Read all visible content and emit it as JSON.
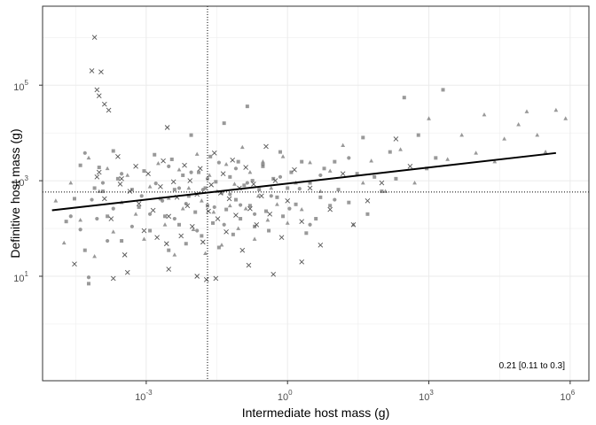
{
  "chart_data": {
    "type": "scatter",
    "title": "",
    "xlabel": "Intermediate host mass (g)",
    "ylabel": "Definitive host mass (g)",
    "x_scale": "log10",
    "y_scale": "log10",
    "xlim": [
      6.3e-06,
      2500000
    ],
    "ylim": [
      0.065,
      4500000
    ],
    "x_ticks": [
      {
        "value": 0.001,
        "base": "10",
        "exp": "-3"
      },
      {
        "value": 1,
        "base": "10",
        "exp": "0"
      },
      {
        "value": 1000,
        "base": "10",
        "exp": "3"
      },
      {
        "value": 1000000,
        "base": "10",
        "exp": "6"
      }
    ],
    "y_ticks": [
      {
        "value": 10,
        "base": "10",
        "exp": "1"
      },
      {
        "value": 1000,
        "base": "10",
        "exp": "3"
      },
      {
        "value": 100000,
        "base": "10",
        "exp": "5"
      }
    ],
    "grid": true,
    "colors": {
      "points": "#7f7f7f",
      "trend": "#000000",
      "grid": "#ebebeb",
      "panel_border": "#333333"
    },
    "reference_lines": {
      "vertical_x": 0.02,
      "horizontal_y": 580,
      "style": "dotted"
    },
    "trend_line": {
      "x": [
        1e-05,
        500000
      ],
      "y": [
        240,
        3800
      ]
    },
    "annotation": "0.21 [0.11 to 0.3]",
    "series": [
      {
        "marker": "square",
        "points": [
          [
            2e-05,
            140
          ],
          [
            3e-05,
            420
          ],
          [
            4e-05,
            2100
          ],
          [
            5e-05,
            35
          ],
          [
            6e-05,
            7
          ],
          [
            8e-05,
            700
          ],
          [
            0.0001,
            1900
          ],
          [
            0.00012,
            600
          ],
          [
            0.00015,
            180
          ],
          [
            0.0002,
            4200
          ],
          [
            0.00025,
            1100
          ],
          [
            0.0003,
            55
          ],
          [
            0.0005,
            650
          ],
          [
            0.0007,
            280
          ],
          [
            0.0009,
            1600
          ],
          [
            0.0012,
            90
          ],
          [
            0.0015,
            3500
          ],
          [
            0.002,
            420
          ],
          [
            0.0025,
            180
          ],
          [
            0.003,
            35
          ],
          [
            0.0035,
            2800
          ],
          [
            0.004,
            650
          ],
          [
            0.005,
            120
          ],
          [
            0.006,
            1300
          ],
          [
            0.007,
            48
          ],
          [
            0.008,
            480
          ],
          [
            0.009,
            9000
          ],
          [
            0.011,
            220
          ],
          [
            0.013,
            1500
          ],
          [
            0.015,
            70
          ],
          [
            0.018,
            700
          ],
          [
            0.02,
            300
          ],
          [
            0.023,
            3200
          ],
          [
            0.026,
            130
          ],
          [
            0.03,
            950
          ],
          [
            0.035,
            40
          ],
          [
            0.04,
            560
          ],
          [
            0.045,
            16000
          ],
          [
            0.05,
            250
          ],
          [
            0.06,
            1200
          ],
          [
            0.07,
            75
          ],
          [
            0.08,
            400
          ],
          [
            0.09,
            2500
          ],
          [
            0.1,
            160
          ],
          [
            0.12,
            800
          ],
          [
            0.14,
            36000
          ],
          [
            0.16,
            300
          ],
          [
            0.18,
            1000
          ],
          [
            0.2,
            110
          ],
          [
            0.25,
            650
          ],
          [
            0.3,
            2000
          ],
          [
            0.35,
            230
          ],
          [
            0.4,
            90
          ],
          [
            0.5,
            1100
          ],
          [
            0.6,
            450
          ],
          [
            0.7,
            4000
          ],
          [
            0.8,
            180
          ],
          [
            1,
            700
          ],
          [
            1.2,
            1500
          ],
          [
            1.5,
            320
          ],
          [
            2,
            2500
          ],
          [
            2.5,
            80
          ],
          [
            3,
            900
          ],
          [
            4,
            160
          ],
          [
            5,
            450
          ],
          [
            6,
            1800
          ],
          [
            8,
            300
          ],
          [
            10,
            2500
          ],
          [
            12,
            650
          ],
          [
            20,
            350
          ],
          [
            30,
            1400
          ],
          [
            40,
            8000
          ],
          [
            50,
            200
          ],
          [
            70,
            1200
          ],
          [
            100,
            600
          ],
          [
            150,
            4000
          ],
          [
            200,
            1100
          ],
          [
            300,
            55000
          ],
          [
            600,
            9000
          ],
          [
            900,
            1800
          ],
          [
            1400,
            3000
          ],
          [
            2000,
            80000
          ]
        ]
      },
      {
        "marker": "triangle",
        "points": [
          [
            1.2e-05,
            380
          ],
          [
            1.8e-05,
            50
          ],
          [
            2.5e-05,
            900
          ],
          [
            4e-05,
            150
          ],
          [
            6e-05,
            3000
          ],
          [
            8e-05,
            26
          ],
          [
            0.0001,
            600
          ],
          [
            0.00015,
            1800
          ],
          [
            0.0002,
            85
          ],
          [
            0.0003,
            350
          ],
          [
            0.0004,
            1300
          ],
          [
            0.0006,
            200
          ],
          [
            0.0009,
            60
          ],
          [
            0.0012,
            750
          ],
          [
            0.0018,
            2300
          ],
          [
            0.0025,
            120
          ],
          [
            0.003,
            430
          ],
          [
            0.004,
            28
          ],
          [
            0.005,
            1700
          ],
          [
            0.006,
            260
          ],
          [
            0.008,
            700
          ],
          [
            0.01,
            95
          ],
          [
            0.012,
            3600
          ],
          [
            0.015,
            380
          ],
          [
            0.018,
            30
          ],
          [
            0.022,
            1300
          ],
          [
            0.027,
            220
          ],
          [
            0.032,
            600
          ],
          [
            0.04,
            45
          ],
          [
            0.05,
            2200
          ],
          [
            0.06,
            300
          ],
          [
            0.075,
            850
          ],
          [
            0.09,
            100
          ],
          [
            0.11,
            5000
          ],
          [
            0.13,
            260
          ],
          [
            0.16,
            1500
          ],
          [
            0.2,
            60
          ],
          [
            0.24,
            480
          ],
          [
            0.3,
            2500
          ],
          [
            0.38,
            150
          ],
          [
            0.45,
            700
          ],
          [
            0.6,
            320
          ],
          [
            0.8,
            3200
          ],
          [
            1,
            130
          ],
          [
            1.5,
            900
          ],
          [
            2,
            250
          ],
          [
            3,
            2400
          ],
          [
            5,
            600
          ],
          [
            8,
            1600
          ],
          [
            15,
            5500
          ],
          [
            25,
            120
          ],
          [
            40,
            900
          ],
          [
            60,
            2600
          ],
          [
            120,
            600
          ],
          [
            250,
            4500
          ],
          [
            500,
            900
          ],
          [
            1000,
            20000
          ],
          [
            2500,
            2800
          ],
          [
            5000,
            9000
          ],
          [
            10000,
            3800
          ],
          [
            15000,
            24000
          ],
          [
            25000,
            2500
          ],
          [
            40000,
            7500
          ],
          [
            80000,
            15000
          ],
          [
            120000,
            28000
          ],
          [
            200000,
            9000
          ],
          [
            300000,
            4000
          ],
          [
            500000,
            30000
          ],
          [
            800000,
            20000
          ]
        ]
      },
      {
        "marker": "cross",
        "points": [
          [
            8e-05,
            1000000
          ],
          [
            7e-05,
            200000
          ],
          [
            9e-05,
            80000
          ],
          [
            0.0001,
            60000
          ],
          [
            0.00011,
            190000
          ],
          [
            0.00013,
            40000
          ],
          [
            0.00016,
            30000
          ],
          [
            9e-05,
            1200
          ],
          [
            0.00013,
            420
          ],
          [
            0.00018,
            160
          ],
          [
            0.00025,
            3200
          ],
          [
            0.00028,
            850
          ],
          [
            0.0003,
            1100
          ],
          [
            0.00035,
            28
          ],
          [
            0.00045,
            600
          ],
          [
            0.0006,
            2000
          ],
          [
            0.0007,
            330
          ],
          [
            0.0009,
            90
          ],
          [
            0.0011,
            1400
          ],
          [
            0.0014,
            240
          ],
          [
            0.0017,
            65
          ],
          [
            0.002,
            750
          ],
          [
            0.0023,
            2600
          ],
          [
            0.0027,
            48
          ],
          [
            0.0028,
            13000
          ],
          [
            0.003,
            180
          ],
          [
            0.0038,
            950
          ],
          [
            0.0045,
            450
          ],
          [
            0.0055,
            70
          ],
          [
            0.0065,
            2100
          ],
          [
            0.0075,
            300
          ],
          [
            0.0085,
            1000
          ],
          [
            0.0095,
            110
          ],
          [
            0.012,
            520
          ],
          [
            0.014,
            1800
          ],
          [
            0.016,
            52
          ],
          [
            0.019,
            8.5
          ],
          [
            0.021,
            230
          ],
          [
            0.024,
            820
          ],
          [
            0.028,
            3800
          ],
          [
            0.033,
            160
          ],
          [
            0.038,
            550
          ],
          [
            0.043,
            1400
          ],
          [
            0.05,
            85
          ],
          [
            0.058,
            420
          ],
          [
            0.068,
            2700
          ],
          [
            0.08,
            190
          ],
          [
            0.095,
            700
          ],
          [
            0.11,
            35
          ],
          [
            0.13,
            1900
          ],
          [
            0.16,
            260
          ],
          [
            0.19,
            850
          ],
          [
            0.22,
            120
          ],
          [
            0.28,
            480
          ],
          [
            0.35,
            5200
          ],
          [
            0.42,
            200
          ],
          [
            0.55,
            1000
          ],
          [
            0.75,
            65
          ],
          [
            1,
            380
          ],
          [
            1.4,
            1700
          ],
          [
            2,
            140
          ],
          [
            3,
            700
          ],
          [
            5,
            45
          ],
          [
            8,
            250
          ],
          [
            15,
            1400
          ],
          [
            25,
            120
          ],
          [
            50,
            380
          ],
          [
            100,
            900
          ],
          [
            200,
            7500
          ],
          [
            400,
            2000
          ],
          [
            0.0002,
            9
          ],
          [
            0.0004,
            12
          ],
          [
            3e-05,
            18
          ],
          [
            0.003,
            14
          ],
          [
            0.012,
            10
          ],
          [
            0.03,
            9
          ],
          [
            0.15,
            17
          ],
          [
            0.5,
            11
          ],
          [
            2,
            20
          ],
          [
            0.0001,
            1500
          ]
        ]
      },
      {
        "marker": "circle",
        "points": [
          [
            2.5e-05,
            180
          ],
          [
            4e-05,
            95
          ],
          [
            5e-05,
            3800
          ],
          [
            6e-05,
            9.5
          ],
          [
            7e-05,
            400
          ],
          [
            9e-05,
            160
          ],
          [
            0.00012,
            900
          ],
          [
            0.00015,
            55
          ],
          [
            0.0002,
            260
          ],
          [
            0.0003,
            1400
          ],
          [
            0.0005,
            110
          ],
          [
            0.0008,
            480
          ],
          [
            0.0012,
            200
          ],
          [
            0.0016,
            880
          ],
          [
            0.0022,
            380
          ],
          [
            0.003,
            2000
          ],
          [
            0.004,
            160
          ],
          [
            0.005,
            700
          ],
          [
            0.007,
            330
          ],
          [
            0.009,
            1500
          ],
          [
            0.012,
            90
          ],
          [
            0.016,
            650
          ],
          [
            0.02,
            1100
          ],
          [
            0.028,
            280
          ],
          [
            0.035,
            2400
          ],
          [
            0.045,
            120
          ],
          [
            0.06,
            520
          ],
          [
            0.08,
            1800
          ],
          [
            0.1,
            310
          ],
          [
            0.14,
            900
          ],
          [
            0.2,
            200
          ],
          [
            0.3,
            2200
          ],
          [
            0.45,
            480
          ],
          [
            0.7,
            1200
          ],
          [
            1.1,
            260
          ],
          [
            1.8,
            680
          ],
          [
            3,
            120
          ],
          [
            5,
            1300
          ],
          [
            10,
            400
          ],
          [
            20,
            3000
          ]
        ]
      }
    ]
  }
}
